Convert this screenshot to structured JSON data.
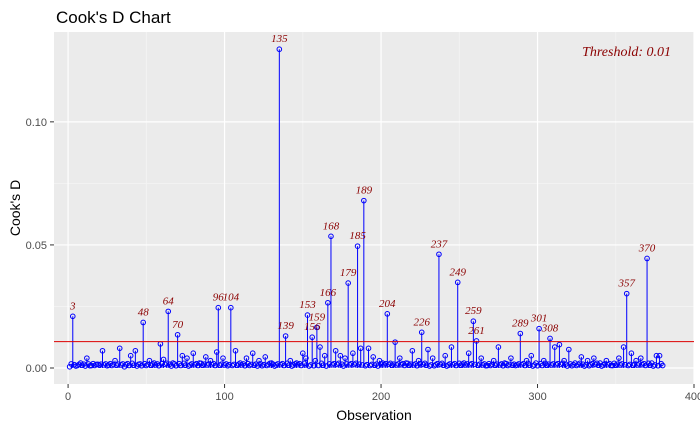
{
  "chart_data": {
    "type": "scatter",
    "title": "Cook's D Chart",
    "xlabel": "Observation",
    "ylabel": "Cook's D",
    "xlim": [
      -9,
      400
    ],
    "ylim": [
      -0.0065,
      0.1365
    ],
    "x_ticks": [
      0,
      100,
      200,
      300,
      400
    ],
    "y_ticks": [
      0.0,
      0.05,
      0.1
    ],
    "y_tick_labels": [
      "0.00",
      "0.05",
      "0.10"
    ],
    "grid": true,
    "threshold": {
      "value": 0.0107,
      "label": "Threshold: 0.01"
    },
    "highlighted": [
      {
        "x": 3,
        "y": 0.021,
        "label": "3"
      },
      {
        "x": 48,
        "y": 0.0185,
        "label": "48"
      },
      {
        "x": 64,
        "y": 0.023,
        "label": "64"
      },
      {
        "x": 70,
        "y": 0.0135,
        "label": "70"
      },
      {
        "x": 96,
        "y": 0.0245,
        "label": "96"
      },
      {
        "x": 104,
        "y": 0.0245,
        "label": "104"
      },
      {
        "x": 135,
        "y": 0.1295,
        "label": "135"
      },
      {
        "x": 139,
        "y": 0.013,
        "label": "139"
      },
      {
        "x": 153,
        "y": 0.0215,
        "label": "153"
      },
      {
        "x": 156,
        "y": 0.0125,
        "label": "156"
      },
      {
        "x": 159,
        "y": 0.0165,
        "label": "159"
      },
      {
        "x": 166,
        "y": 0.0265,
        "label": "166"
      },
      {
        "x": 168,
        "y": 0.0535,
        "label": "168"
      },
      {
        "x": 179,
        "y": 0.0345,
        "label": "179"
      },
      {
        "x": 185,
        "y": 0.0495,
        "label": "185"
      },
      {
        "x": 189,
        "y": 0.068,
        "label": "189"
      },
      {
        "x": 204,
        "y": 0.022,
        "label": "204"
      },
      {
        "x": 226,
        "y": 0.0145,
        "label": "226"
      },
      {
        "x": 237,
        "y": 0.0462,
        "label": "237"
      },
      {
        "x": 249,
        "y": 0.0348,
        "label": "249"
      },
      {
        "x": 259,
        "y": 0.019,
        "label": "259"
      },
      {
        "x": 261,
        "y": 0.011,
        "label": "261"
      },
      {
        "x": 289,
        "y": 0.014,
        "label": "289"
      },
      {
        "x": 301,
        "y": 0.016,
        "label": "301"
      },
      {
        "x": 308,
        "y": 0.012,
        "label": "308"
      },
      {
        "x": 357,
        "y": 0.0302,
        "label": "357"
      },
      {
        "x": 370,
        "y": 0.0445,
        "label": "370"
      }
    ],
    "n_observations": 380,
    "base_points": [
      [
        1,
        0.0005
      ],
      [
        5,
        0.0008
      ],
      [
        8,
        0.002
      ],
      [
        12,
        0.004
      ],
      [
        15,
        0.001
      ],
      [
        19,
        0.0015
      ],
      [
        22,
        0.007
      ],
      [
        26,
        0.0012
      ],
      [
        30,
        0.003
      ],
      [
        33,
        0.008
      ],
      [
        36,
        0.0005
      ],
      [
        40,
        0.005
      ],
      [
        43,
        0.007
      ],
      [
        45,
        0.0015
      ],
      [
        52,
        0.003
      ],
      [
        55,
        0.002
      ],
      [
        59,
        0.0098
      ],
      [
        61,
        0.0035
      ],
      [
        67,
        0.002
      ],
      [
        73,
        0.005
      ],
      [
        76,
        0.004
      ],
      [
        80,
        0.006
      ],
      [
        84,
        0.002
      ],
      [
        88,
        0.0045
      ],
      [
        91,
        0.003
      ],
      [
        95,
        0.0065
      ],
      [
        99,
        0.004
      ],
      [
        107,
        0.007
      ],
      [
        110,
        0.002
      ],
      [
        114,
        0.004
      ],
      [
        118,
        0.006
      ],
      [
        122,
        0.003
      ],
      [
        126,
        0.0045
      ],
      [
        130,
        0.002
      ],
      [
        142,
        0.003
      ],
      [
        146,
        0.002
      ],
      [
        150,
        0.006
      ],
      [
        152,
        0.004
      ],
      [
        158,
        0.003
      ],
      [
        161,
        0.0085
      ],
      [
        164,
        0.005
      ],
      [
        171,
        0.007
      ],
      [
        174,
        0.005
      ],
      [
        177,
        0.004
      ],
      [
        182,
        0.006
      ],
      [
        187,
        0.008
      ],
      [
        192,
        0.008
      ],
      [
        195,
        0.0045
      ],
      [
        199,
        0.003
      ],
      [
        201,
        0.002
      ],
      [
        209,
        0.0105
      ],
      [
        212,
        0.004
      ],
      [
        216,
        0.002
      ],
      [
        220,
        0.007
      ],
      [
        224,
        0.003
      ],
      [
        230,
        0.0075
      ],
      [
        233,
        0.004
      ],
      [
        241,
        0.005
      ],
      [
        245,
        0.0085
      ],
      [
        253,
        0.002
      ],
      [
        256,
        0.006
      ],
      [
        264,
        0.004
      ],
      [
        268,
        0.001
      ],
      [
        272,
        0.003
      ],
      [
        275,
        0.0085
      ],
      [
        279,
        0.002
      ],
      [
        283,
        0.004
      ],
      [
        286,
        0.001
      ],
      [
        293,
        0.003
      ],
      [
        296,
        0.005
      ],
      [
        299,
        0.002
      ],
      [
        304,
        0.003
      ],
      [
        311,
        0.0085
      ],
      [
        314,
        0.0095
      ],
      [
        317,
        0.003
      ],
      [
        320,
        0.0075
      ],
      [
        324,
        0.002
      ],
      [
        328,
        0.0045
      ],
      [
        332,
        0.003
      ],
      [
        336,
        0.004
      ],
      [
        340,
        0.002
      ],
      [
        344,
        0.003
      ],
      [
        348,
        0.001
      ],
      [
        352,
        0.004
      ],
      [
        355,
        0.0085
      ],
      [
        360,
        0.006
      ],
      [
        363,
        0.003
      ],
      [
        366,
        0.004
      ],
      [
        373,
        0.002
      ],
      [
        376,
        0.005
      ],
      [
        378,
        0.005
      ],
      [
        380,
        0.001
      ]
    ]
  },
  "colors": {
    "panel": "#EBEBEB",
    "grid_major": "#FFFFFF",
    "grid_minor": "#F4F4F4",
    "points": "#0000FF",
    "threshold_line": "#DD0000",
    "labels": "#8B0000"
  }
}
